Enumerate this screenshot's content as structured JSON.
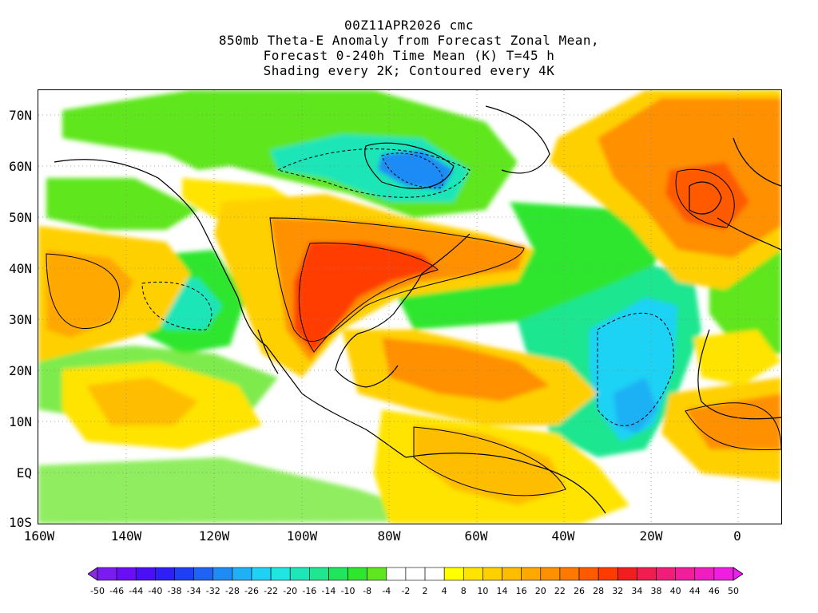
{
  "title": {
    "line1": "00Z11APR2026 cmc",
    "line2": "850mb Theta-E Anomaly from Forecast Zonal Mean,",
    "line3": "Forecast 0-240h Time Mean (K) T=45 h",
    "line4": "Shading every 2K; Contoured every 4K"
  },
  "map": {
    "lat_labels": [
      "70N",
      "60N",
      "50N",
      "40N",
      "30N",
      "20N",
      "10N",
      "EQ",
      "10S"
    ],
    "lon_labels": [
      "160W",
      "140W",
      "120W",
      "100W",
      "80W",
      "60W",
      "40W",
      "20W",
      "0"
    ],
    "lon_range": [
      -160,
      10
    ],
    "lat_range": [
      -10,
      75
    ]
  },
  "colorbar": {
    "labels": [
      "-50",
      "-46",
      "-44",
      "-40",
      "-38",
      "-34",
      "-32",
      "-28",
      "-26",
      "-22",
      "-20",
      "-16",
      "-14",
      "-10",
      "-8",
      "-4",
      "-2",
      "2",
      "4",
      "8",
      "10",
      "14",
      "16",
      "20",
      "22",
      "26",
      "28",
      "32",
      "34",
      "38",
      "40",
      "44",
      "46",
      "50"
    ],
    "colors": [
      "#8a2be2",
      "#7a1cf0",
      "#6a0ef5",
      "#4b0ff5",
      "#2d1ff5",
      "#1f3ff5",
      "#1f63f5",
      "#1f8bf5",
      "#1fb0f5",
      "#1fd2f5",
      "#1fe6e0",
      "#1fe6b8",
      "#1fe68f",
      "#1fe65c",
      "#2ee62e",
      "#5fe61f",
      "#ffffff",
      "#ffffff",
      "#ffffff",
      "#ffff00",
      "#ffe400",
      "#ffd000",
      "#ffbd00",
      "#ffa800",
      "#ff9000",
      "#ff7800",
      "#ff5a00",
      "#ff3c00",
      "#f01e1e",
      "#f01e50",
      "#f01e78",
      "#f01e9b",
      "#f01ebe",
      "#f01ee1",
      "#f01ef5"
    ]
  }
}
